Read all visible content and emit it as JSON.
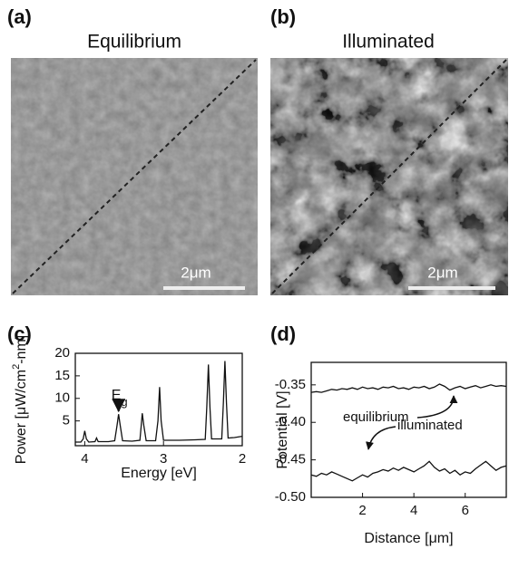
{
  "images": [
    {
      "label": "(a)",
      "title": "Equilibrium",
      "scale_bar": "2μm"
    },
    {
      "label": "(b)",
      "title": "Illuminated",
      "scale_bar": "2μm"
    }
  ],
  "chart_data": [
    {
      "type": "line",
      "label": "(c)",
      "xlabel": "Energy [eV]",
      "ylabel": [
        "Power [μW/cm",
        "2",
        "-nm]"
      ],
      "annotation": {
        "text": "E",
        "subscript": "g"
      },
      "x": [
        4.12,
        4.05,
        4.02,
        4.0,
        3.98,
        3.95,
        3.87,
        3.85,
        3.83,
        3.7,
        3.62,
        3.59,
        3.57,
        3.55,
        3.52,
        3.4,
        3.3,
        3.28,
        3.27,
        3.25,
        3.22,
        3.1,
        3.07,
        3.05,
        3.03,
        3.0,
        2.8,
        2.6,
        2.47,
        2.45,
        2.43,
        2.41,
        2.39,
        2.26,
        2.24,
        2.22,
        2.2,
        2.18,
        2.1,
        2.0
      ],
      "values": [
        0.3,
        0.3,
        1.0,
        2.8,
        1.0,
        0.3,
        0.4,
        1.2,
        0.4,
        0.4,
        0.6,
        4.0,
        6.5,
        4.0,
        0.6,
        0.5,
        0.7,
        4.5,
        6.7,
        4.0,
        0.6,
        0.6,
        5.0,
        12.5,
        5.0,
        0.7,
        0.7,
        0.8,
        0.9,
        8,
        17.5,
        8,
        1.0,
        1.0,
        9,
        18.3,
        9,
        1.2,
        1.3,
        1.6
      ],
      "color": "#111111",
      "xlim": [
        4.12,
        2
      ],
      "xticks": [
        4,
        3,
        2
      ],
      "ylim": [
        -0.5,
        20
      ],
      "yticks": [
        5,
        10,
        15,
        20
      ]
    },
    {
      "type": "line",
      "label": "(d)",
      "xlabel": "Distance [μm]",
      "ylabel": [
        "Potential [V]"
      ],
      "x": [
        0,
        0.2,
        0.4,
        0.6,
        0.8,
        1.0,
        1.2,
        1.4,
        1.6,
        1.8,
        2.0,
        2.2,
        2.4,
        2.6,
        2.8,
        3.0,
        3.2,
        3.4,
        3.6,
        3.8,
        4.0,
        4.2,
        4.4,
        4.6,
        4.8,
        5.0,
        5.2,
        5.4,
        5.6,
        5.8,
        6.0,
        6.2,
        6.4,
        6.6,
        6.8,
        7.0,
        7.2,
        7.4,
        7.6
      ],
      "series": [
        {
          "name": "equilibrium",
          "color": "#111111",
          "values": [
            -0.36,
            -0.359,
            -0.36,
            -0.358,
            -0.356,
            -0.357,
            -0.355,
            -0.356,
            -0.354,
            -0.356,
            -0.353,
            -0.355,
            -0.354,
            -0.356,
            -0.353,
            -0.354,
            -0.352,
            -0.355,
            -0.354,
            -0.356,
            -0.353,
            -0.354,
            -0.352,
            -0.355,
            -0.353,
            -0.349,
            -0.352,
            -0.357,
            -0.354,
            -0.352,
            -0.355,
            -0.353,
            -0.351,
            -0.354,
            -0.352,
            -0.35,
            -0.352,
            -0.351,
            -0.352
          ]
        },
        {
          "name": "illuminated",
          "color": "#111111",
          "values": [
            -0.47,
            -0.472,
            -0.468,
            -0.47,
            -0.466,
            -0.469,
            -0.472,
            -0.475,
            -0.478,
            -0.474,
            -0.47,
            -0.473,
            -0.468,
            -0.466,
            -0.463,
            -0.465,
            -0.461,
            -0.464,
            -0.46,
            -0.463,
            -0.466,
            -0.462,
            -0.458,
            -0.452,
            -0.46,
            -0.465,
            -0.462,
            -0.468,
            -0.464,
            -0.47,
            -0.466,
            -0.468,
            -0.462,
            -0.457,
            -0.452,
            -0.458,
            -0.464,
            -0.46,
            -0.458
          ]
        }
      ],
      "xlim": [
        0,
        7.6
      ],
      "xticks": [
        2,
        4,
        6
      ],
      "ylim": [
        -0.5,
        -0.32
      ],
      "yticks": [
        -0.35,
        {
          "value": -0.4,
          "label": "-0.40"
        },
        -0.45,
        {
          "value": -0.5,
          "label": "-0.50"
        }
      ]
    }
  ]
}
